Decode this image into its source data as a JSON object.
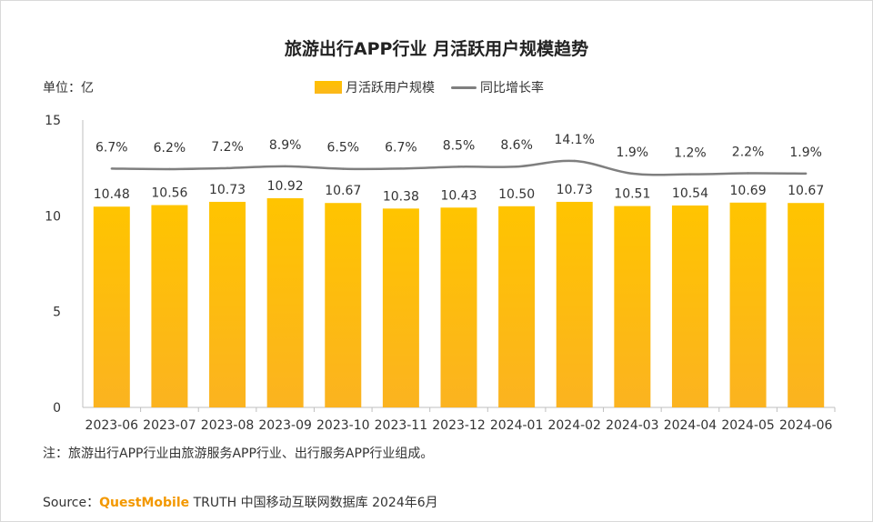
{
  "chart_data": {
    "type": "bar",
    "title": "旅游出行APP行业 月活跃用户规模趋势",
    "unit_label": "单位：亿",
    "ylim": [
      0,
      15
    ],
    "y_ticks": [
      "0",
      "5",
      "10",
      "15"
    ],
    "y_tick_values": [
      0,
      5,
      10,
      15
    ],
    "categories": [
      "2023-06",
      "2023-07",
      "2023-08",
      "2023-09",
      "2023-10",
      "2023-11",
      "2023-12",
      "2024-01",
      "2024-02",
      "2024-03",
      "2024-04",
      "2024-05",
      "2024-06"
    ],
    "series": [
      {
        "name": "月活跃用户规模",
        "type": "bar",
        "values": [
          10.48,
          10.56,
          10.73,
          10.92,
          10.67,
          10.38,
          10.43,
          10.5,
          10.73,
          10.51,
          10.54,
          10.69,
          10.67
        ],
        "labels": [
          "10.48",
          "10.56",
          "10.73",
          "10.92",
          "10.67",
          "10.38",
          "10.43",
          "10.50",
          "10.73",
          "10.51",
          "10.54",
          "10.69",
          "10.67"
        ]
      },
      {
        "name": "同比增长率",
        "type": "line",
        "values": [
          6.7,
          6.2,
          7.2,
          8.9,
          6.5,
          6.7,
          8.5,
          8.6,
          14.1,
          1.9,
          1.2,
          2.2,
          1.9
        ],
        "labels": [
          "6.7%",
          "6.2%",
          "7.2%",
          "8.9%",
          "6.5%",
          "6.7%",
          "8.5%",
          "8.6%",
          "14.1%",
          "1.9%",
          "1.2%",
          "2.2%",
          "1.9%"
        ]
      }
    ],
    "colors": {
      "bar_top": "#ffc000",
      "bar_bottom": "#fbb81c",
      "line": "#7f7f7f",
      "axis": "#bfbfbf"
    }
  },
  "note": "注：旅游出行APP行业由旅游服务APP行业、出行服务APP行业组成。",
  "source": {
    "prefix": "Source：",
    "brand": "QuestMobile",
    "suffix": " TRUTH 中国移动互联网数据库 2024年6月"
  }
}
